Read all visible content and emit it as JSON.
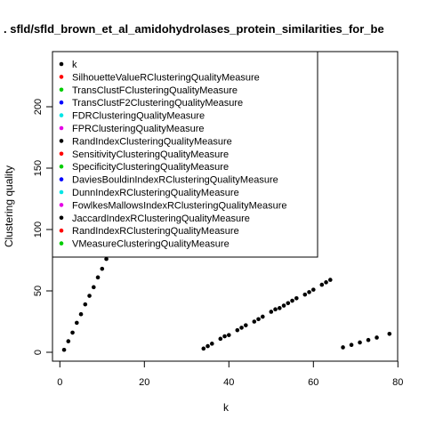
{
  "chart_data": {
    "type": "scatter",
    "title": ". sfld/sfld_brown_et_al_amidohydrolases_protein_similarities_for_be",
    "xlabel": "k",
    "ylabel": "Clustering quality",
    "xlim": [
      0,
      80
    ],
    "ylim": [
      0,
      230
    ],
    "x_ticks": [
      0,
      20,
      40,
      60,
      80
    ],
    "y_ticks": [
      0,
      50,
      100,
      150,
      200
    ],
    "grid": false,
    "legend_placement": "top-left",
    "legend": [
      {
        "label": "k",
        "color": "#000000"
      },
      {
        "label": "SilhouetteValueRClusteringQualityMeasure",
        "color": "#ff0000"
      },
      {
        "label": "TransClustFClusteringQualityMeasure",
        "color": "#00cd00"
      },
      {
        "label": "TransClustF2ClusteringQualityMeasure",
        "color": "#0000ff"
      },
      {
        "label": "FDRClusteringQualityMeasure",
        "color": "#00e5e5"
      },
      {
        "label": "FPRClusteringQualityMeasure",
        "color": "#e500e5"
      },
      {
        "label": "RandIndexClusteringQualityMeasure",
        "color": "#000000"
      },
      {
        "label": "SensitivityClusteringQualityMeasure",
        "color": "#ff0000"
      },
      {
        "label": "SpecificityClusteringQualityMeasure",
        "color": "#00cd00"
      },
      {
        "label": "DaviesBouldinIndexRClusteringQualityMeasure",
        "color": "#0000ff"
      },
      {
        "label": "DunnIndexRClusteringQualityMeasure",
        "color": "#00e5e5"
      },
      {
        "label": "FowlkesMallowsIndexRClusteringQualityMeasure",
        "color": "#e500e5"
      },
      {
        "label": "JaccardIndexRClusteringQualityMeasure",
        "color": "#000000"
      },
      {
        "label": "RandIndexRClusteringQualityMeasure",
        "color": "#ff0000"
      },
      {
        "label": "VMeasureClusteringQualityMeasure",
        "color": "#00cd00"
      }
    ],
    "series": [
      {
        "name": "k",
        "color": "#000000",
        "points": [
          [
            1,
            2
          ],
          [
            2,
            9
          ],
          [
            3,
            16
          ],
          [
            4,
            24
          ],
          [
            5,
            31
          ],
          [
            6,
            39
          ],
          [
            7,
            46
          ],
          [
            8,
            53
          ],
          [
            9,
            61
          ],
          [
            10,
            68
          ],
          [
            11,
            76
          ],
          [
            34,
            3
          ],
          [
            35,
            5
          ],
          [
            36,
            7
          ],
          [
            38,
            11
          ],
          [
            39,
            13
          ],
          [
            40,
            14
          ],
          [
            42,
            18
          ],
          [
            43,
            20
          ],
          [
            44,
            22
          ],
          [
            46,
            25
          ],
          [
            47,
            27
          ],
          [
            48,
            29
          ],
          [
            50,
            33
          ],
          [
            51,
            35
          ],
          [
            52,
            36
          ],
          [
            53,
            38
          ],
          [
            54,
            40
          ],
          [
            55,
            42
          ],
          [
            56,
            44
          ],
          [
            58,
            47
          ],
          [
            59,
            49
          ],
          [
            60,
            51
          ],
          [
            62,
            55
          ],
          [
            63,
            57
          ],
          [
            64,
            59
          ],
          [
            67,
            4
          ],
          [
            69,
            6
          ],
          [
            71,
            8
          ],
          [
            73,
            10
          ],
          [
            75,
            12
          ],
          [
            78,
            15
          ]
        ]
      }
    ]
  }
}
